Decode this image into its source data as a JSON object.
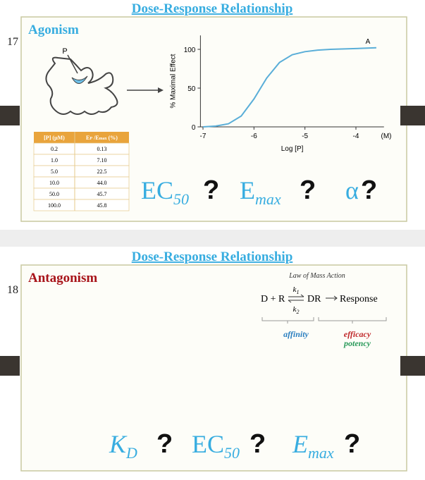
{
  "slides": [
    {
      "number": "17",
      "title": "Dose-Response Relationship",
      "heading": "Agonism",
      "diagram_label": "P",
      "chart": {
        "type": "line",
        "y_label": "% Maximal Effect",
        "x_label": "Log [P]",
        "x_unit": "(M)",
        "series_label": "A",
        "x": [
          -7,
          -6.75,
          -6.5,
          -6.25,
          -6,
          -5.75,
          -5.5,
          -5.25,
          -5,
          -4.75,
          -4.5,
          -4,
          -3.6
        ],
        "values": [
          0,
          1,
          4,
          14,
          36,
          63,
          83,
          93,
          97,
          99,
          100,
          101,
          102
        ],
        "color": "#5aaed8",
        "xlim": [
          -7.05,
          -3.45
        ],
        "xticks": [
          -7,
          -6,
          -5,
          -4
        ],
        "ylim": [
          0,
          118
        ],
        "yticks": [
          0,
          50,
          100
        ]
      },
      "table": {
        "header": [
          [
            "[P] (µM)"
          ],
          [
            "E",
            "P",
            " /E",
            "max",
            " (%)"
          ]
        ],
        "rows": [
          [
            "0.2",
            "0.13"
          ],
          [
            "1.0",
            "7.10"
          ],
          [
            "5.0",
            "22.5"
          ],
          [
            "10.0",
            "44.0"
          ],
          [
            "50.0",
            "45.7"
          ],
          [
            "100.0",
            "45.8"
          ]
        ]
      },
      "parameters": [
        {
          "symbol": "EC",
          "sub": "50"
        },
        {
          "symbol": "E",
          "sub": "max"
        },
        {
          "symbol": "α"
        }
      ],
      "question_mark": "?"
    },
    {
      "number": "18",
      "title": "Dose-Response Relationship",
      "heading": "Antagonism",
      "law": {
        "title": "Law of Mass Action",
        "left": "D + R",
        "k1": [
          "k",
          "1"
        ],
        "k2": [
          "k",
          "2"
        ],
        "product": "DR",
        "right": "Response",
        "affinity": "affinity",
        "efficacy": "efficacy",
        "potency": "potency"
      },
      "parameters": [
        {
          "symbol": "K",
          "sub": "D"
        },
        {
          "symbol": "EC",
          "sub": "50"
        },
        {
          "symbol": "E",
          "sub": "max"
        }
      ],
      "question_mark": "?"
    }
  ]
}
